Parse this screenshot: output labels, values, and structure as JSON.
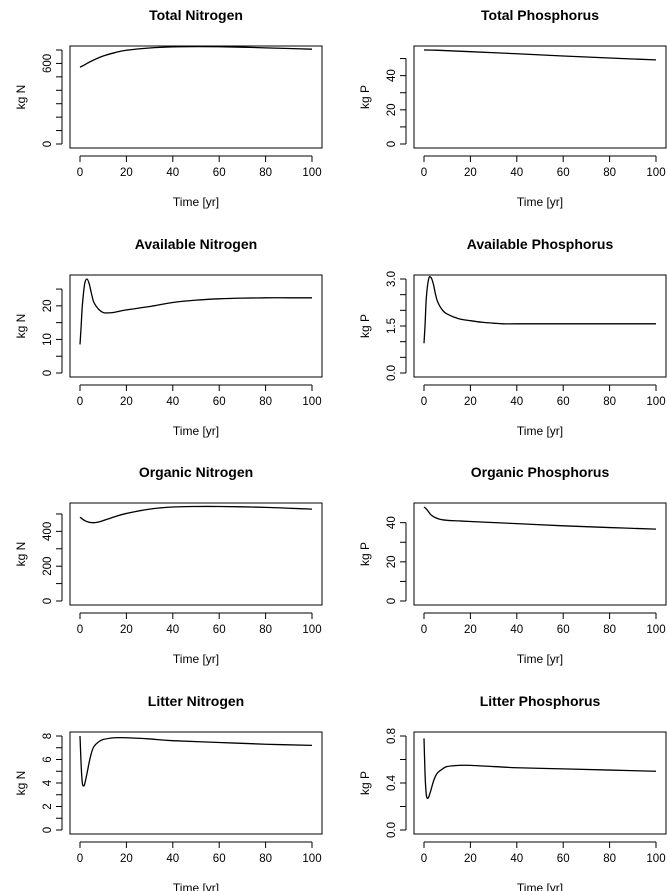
{
  "colors": {
    "line": "#000000",
    "frame": "#000000",
    "background": "#ffffff"
  },
  "chart_data": [
    {
      "type": "line",
      "title": "Total Nitrogen",
      "xlabel": "Time [yr]",
      "ylabel": "kg N",
      "xlim": [
        0,
        100
      ],
      "ylim": [
        0,
        700
      ],
      "xticks": [
        0,
        20,
        40,
        60,
        80,
        100
      ],
      "yticks": [
        0,
        100,
        200,
        300,
        400,
        500,
        600,
        700
      ],
      "ytick_labels": [
        "0",
        "",
        "",
        "",
        "",
        "",
        "600",
        ""
      ],
      "x": [
        0,
        2,
        5,
        10,
        15,
        20,
        30,
        40,
        50,
        60,
        70,
        80,
        90,
        100
      ],
      "series": [
        {
          "values": [
            572,
            590,
            618,
            655,
            680,
            698,
            715,
            723,
            725,
            724,
            721,
            716,
            711,
            706
          ]
        }
      ]
    },
    {
      "type": "line",
      "title": "Total Phosphorus",
      "xlabel": "Time [yr]",
      "ylabel": "kg P",
      "xlim": [
        0,
        100
      ],
      "ylim": [
        0,
        55
      ],
      "xticks": [
        0,
        20,
        40,
        60,
        80,
        100
      ],
      "yticks": [
        0,
        10,
        20,
        30,
        40,
        50
      ],
      "ytick_labels": [
        "0",
        "",
        "20",
        "",
        "40",
        ""
      ],
      "x": [
        0,
        5,
        10,
        20,
        40,
        60,
        80,
        100
      ],
      "series": [
        {
          "values": [
            55,
            54.9,
            54.6,
            54,
            52.8,
            51.5,
            50.3,
            49.2
          ]
        }
      ]
    },
    {
      "type": "line",
      "title": "Available Nitrogen",
      "xlabel": "Time [yr]",
      "ylabel": "kg N",
      "xlim": [
        0,
        100
      ],
      "ylim": [
        0,
        28
      ],
      "xticks": [
        0,
        20,
        40,
        60,
        80,
        100
      ],
      "yticks": [
        0,
        5,
        10,
        15,
        20,
        25
      ],
      "ytick_labels": [
        "0",
        "",
        "10",
        "",
        "20",
        ""
      ],
      "x": [
        0,
        0.5,
        1,
        2,
        3,
        4,
        5,
        6,
        8,
        10,
        12,
        15,
        20,
        30,
        40,
        50,
        60,
        70,
        80,
        90,
        100
      ],
      "series": [
        {
          "values": [
            8.5,
            14,
            20,
            26.5,
            28,
            26.5,
            23.5,
            21,
            19,
            18,
            17.9,
            18.1,
            18.8,
            19.8,
            21,
            21.7,
            22.1,
            22.3,
            22.4,
            22.4,
            22.4
          ]
        }
      ]
    },
    {
      "type": "line",
      "title": "Available Phosphorus",
      "xlabel": "Time [yr]",
      "ylabel": "kg P",
      "xlim": [
        0,
        100
      ],
      "ylim": [
        0,
        3.0
      ],
      "xticks": [
        0,
        20,
        40,
        60,
        80,
        100
      ],
      "yticks": [
        0,
        0.5,
        1.0,
        1.5,
        2.0,
        2.5,
        3.0
      ],
      "ytick_labels": [
        "0.0",
        "",
        "",
        "1.5",
        "",
        "",
        "3.0"
      ],
      "x": [
        0,
        0.5,
        1,
        2,
        3,
        4,
        5,
        6,
        8,
        10,
        15,
        20,
        25,
        30,
        34,
        40,
        60,
        80,
        100
      ],
      "series": [
        {
          "values": [
            0.95,
            1.6,
            2.4,
            3.0,
            3.05,
            2.85,
            2.5,
            2.25,
            2.0,
            1.88,
            1.73,
            1.67,
            1.62,
            1.59,
            1.57,
            1.57,
            1.57,
            1.57,
            1.57
          ]
        }
      ]
    },
    {
      "type": "line",
      "title": "Organic Nitrogen",
      "xlabel": "Time [yr]",
      "ylabel": "kg N",
      "xlim": [
        0,
        100
      ],
      "ylim": [
        0,
        540
      ],
      "xticks": [
        0,
        20,
        40,
        60,
        80,
        100
      ],
      "yticks": [
        0,
        100,
        200,
        300,
        400,
        500
      ],
      "ytick_labels": [
        "0",
        "",
        "200",
        "",
        "400",
        ""
      ],
      "x": [
        0,
        2,
        4,
        6,
        8,
        10,
        15,
        20,
        30,
        40,
        50,
        60,
        70,
        80,
        90,
        100
      ],
      "series": [
        {
          "values": [
            482,
            462,
            452,
            450,
            454,
            462,
            484,
            503,
            528,
            540,
            543,
            543,
            541,
            538,
            533,
            528
          ]
        }
      ]
    },
    {
      "type": "line",
      "title": "Organic Phosphorus",
      "xlabel": "Time [yr]",
      "ylabel": "kg P",
      "xlim": [
        0,
        100
      ],
      "ylim": [
        0,
        48
      ],
      "xticks": [
        0,
        20,
        40,
        60,
        80,
        100
      ],
      "yticks": [
        0,
        10,
        20,
        30,
        40
      ],
      "ytick_labels": [
        "0",
        "",
        "20",
        "",
        "40"
      ],
      "x": [
        0,
        1,
        2,
        3,
        5,
        7,
        10,
        15,
        20,
        40,
        60,
        80,
        100
      ],
      "series": [
        {
          "values": [
            48,
            47,
            45.5,
            44,
            42.5,
            41.7,
            41.2,
            40.9,
            40.6,
            39.5,
            38.4,
            37.5,
            36.7
          ]
        }
      ]
    },
    {
      "type": "line",
      "title": "Litter Nitrogen",
      "xlabel": "Time [yr]",
      "ylabel": "kg N",
      "xlim": [
        0,
        100
      ],
      "ylim": [
        0,
        8
      ],
      "xticks": [
        0,
        20,
        40,
        60,
        80,
        100
      ],
      "yticks": [
        0,
        1,
        2,
        3,
        4,
        5,
        6,
        7,
        8
      ],
      "ytick_labels": [
        "0",
        "",
        "2",
        "",
        "4",
        "",
        "6",
        "",
        "8"
      ],
      "x": [
        0,
        0.5,
        1,
        1.5,
        2,
        3,
        4,
        5,
        6,
        8,
        10,
        15,
        20,
        30,
        40,
        60,
        80,
        100
      ],
      "series": [
        {
          "values": [
            8.0,
            5.5,
            4.0,
            3.75,
            3.9,
            4.8,
            5.8,
            6.6,
            7.1,
            7.5,
            7.7,
            7.85,
            7.85,
            7.75,
            7.6,
            7.45,
            7.3,
            7.2
          ]
        }
      ]
    },
    {
      "type": "line",
      "title": "Litter Phosphorus",
      "xlabel": "Time [yr]",
      "ylabel": "kg P",
      "xlim": [
        0,
        100
      ],
      "ylim": [
        0,
        0.8
      ],
      "xticks": [
        0,
        20,
        40,
        60,
        80,
        100
      ],
      "yticks": [
        0,
        0.2,
        0.4,
        0.6,
        0.8
      ],
      "ytick_labels": [
        "0.0",
        "",
        "0.4",
        "",
        "0.8"
      ],
      "x": [
        0,
        0.5,
        1,
        1.5,
        2,
        3,
        4,
        5,
        6,
        8,
        10,
        15,
        20,
        30,
        40,
        60,
        80,
        100
      ],
      "series": [
        {
          "values": [
            0.78,
            0.45,
            0.3,
            0.27,
            0.28,
            0.34,
            0.41,
            0.46,
            0.49,
            0.52,
            0.54,
            0.55,
            0.55,
            0.54,
            0.53,
            0.52,
            0.51,
            0.5
          ]
        }
      ]
    }
  ]
}
